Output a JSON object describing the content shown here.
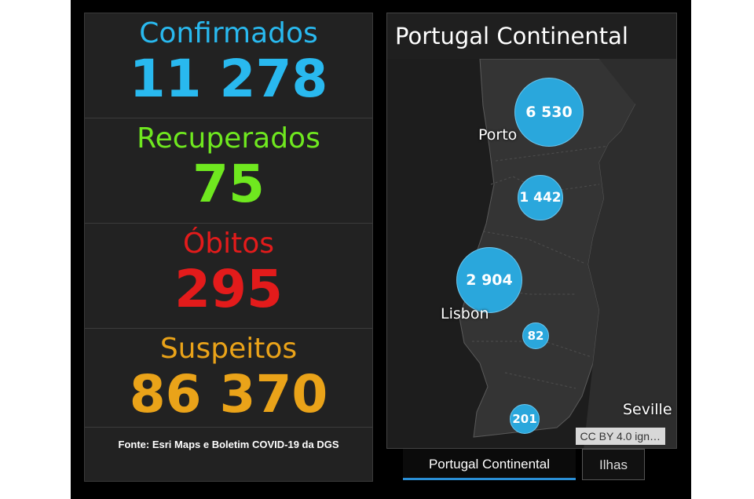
{
  "stats": [
    {
      "label": "Confirmados",
      "value": "11 278",
      "color": "#29b9ef"
    },
    {
      "label": "Recuperados",
      "value": "75",
      "color": "#6fe81f"
    },
    {
      "label": "Óbitos",
      "value": "295",
      "color": "#e31b1b"
    },
    {
      "label": "Suspeitos",
      "value": "86 370",
      "color": "#eaa319"
    }
  ],
  "source": "Fonte:  Esri Maps e Boletim COVID-19 da DGS",
  "map": {
    "title": "Portugal Continental",
    "bubbles": [
      {
        "value": "6 530"
      },
      {
        "value": "1 442"
      },
      {
        "value": "2 904"
      },
      {
        "value": "82"
      },
      {
        "value": "201"
      }
    ],
    "cities": [
      "Porto",
      "Lisbon",
      "Seville"
    ],
    "attribution": "CC BY 4.0 ign…"
  },
  "tabs": [
    {
      "label": "Portugal Continental",
      "active": true
    },
    {
      "label": "Ilhas",
      "active": false
    }
  ],
  "colors": {
    "bubble": "#2aa7dc",
    "panel": "#222222",
    "frame": "#000000",
    "tab_accent": "#2a8fd6"
  }
}
